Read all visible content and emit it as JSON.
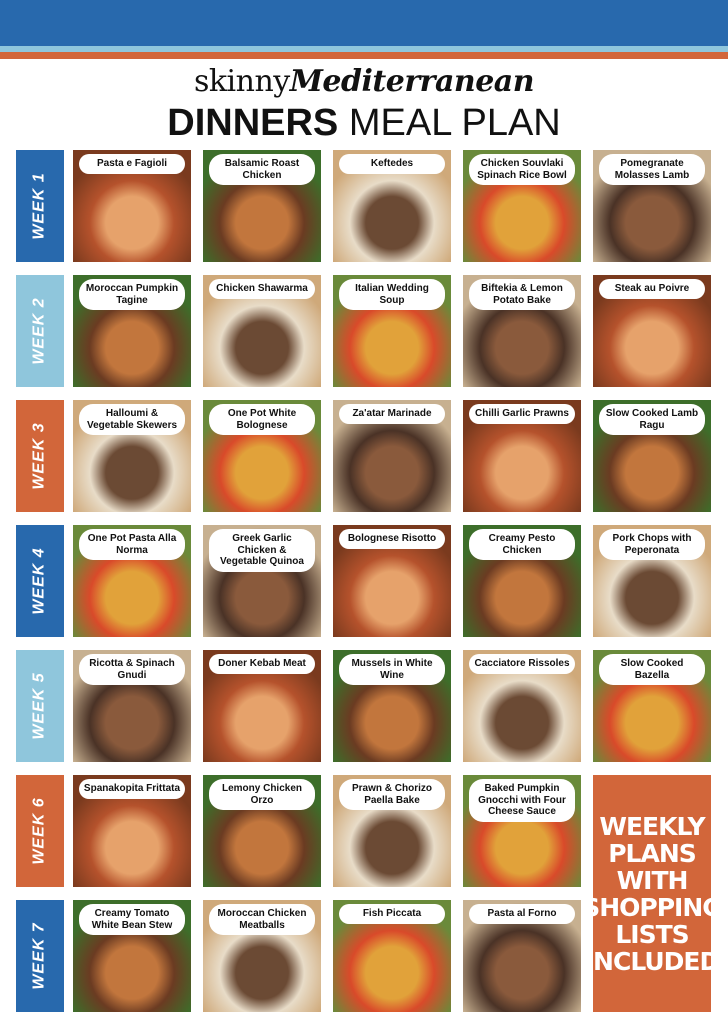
{
  "colors": {
    "blue": "#2869ad",
    "light_blue": "#8fc6dc",
    "orange": "#d2663a"
  },
  "header": {
    "brand_prefix": "skinny",
    "brand_suffix": "Mediterranean",
    "title_bold": "DINNERS",
    "title_regular": "MEAL PLAN"
  },
  "weeks": [
    {
      "label": "WEEK 1",
      "color": "#2869ad",
      "meals": [
        "Pasta e Fagioli",
        "Balsamic Roast Chicken",
        "Keftedes",
        "Chicken Souvlaki Spinach Rice Bowl",
        "Pomegranate Molasses Lamb"
      ]
    },
    {
      "label": "WEEK 2",
      "color": "#8fc6dc",
      "meals": [
        "Moroccan Pumpkin Tagine",
        "Chicken Shawarma",
        "Italian Wedding Soup",
        "Biftekia & Lemon Potato Bake",
        "Steak au Poivre"
      ]
    },
    {
      "label": "WEEK 3",
      "color": "#d2663a",
      "meals": [
        "Halloumi & Vegetable Skewers",
        "One Pot White Bolognese",
        "Za'atar Marinade",
        "Chilli Garlic Prawns",
        "Slow Cooked Lamb Ragu"
      ]
    },
    {
      "label": "WEEK 4",
      "color": "#2869ad",
      "meals": [
        "One Pot Pasta Alla Norma",
        "Greek Garlic Chicken & Vegetable Quinoa",
        "Bolognese Risotto",
        "Creamy Pesto Chicken",
        "Pork Chops with Peperonata"
      ]
    },
    {
      "label": "WEEK 5",
      "color": "#8fc6dc",
      "meals": [
        "Ricotta & Spinach Gnudi",
        "Doner Kebab Meat",
        "Mussels in White Wine",
        "Cacciatore Rissoles",
        "Slow Cooked Bazella"
      ]
    },
    {
      "label": "WEEK 6",
      "color": "#d2663a",
      "meals": [
        "Spanakopita Frittata",
        "Lemony Chicken Orzo",
        "Prawn & Chorizo Paella Bake",
        "Baked Pumpkin Gnocchi with Four Cheese Sauce"
      ]
    },
    {
      "label": "WEEK 7",
      "color": "#2869ad",
      "meals": [
        "Creamy Tomato White Bean Stew",
        "Moroccan Chicken Meatballs",
        "Fish Piccata",
        "Pasta al Forno"
      ]
    }
  ],
  "promo": {
    "text": "WEEKLY PLANS WITH SHOPPING LISTS INCLUDED"
  }
}
